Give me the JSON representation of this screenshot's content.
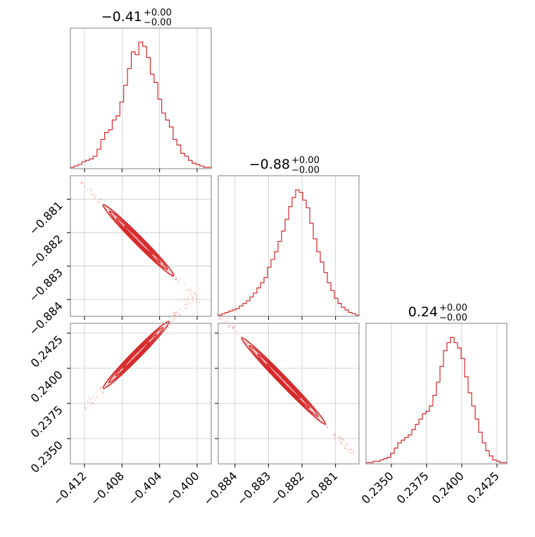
{
  "colors": {
    "accent": "#d62728",
    "grid": "#c8c8c8",
    "frame": "#808080"
  },
  "chart_data": {
    "type": "corner",
    "parameters": [
      {
        "title_value": "−0.41",
        "title_plus": "+0.00",
        "title_minus": "−0.00",
        "range": [
          -0.4135,
          -0.3985
        ],
        "ticks": [
          -0.412,
          -0.408,
          -0.404,
          -0.4
        ],
        "tick_labels": [
          "−0.412",
          "−0.408",
          "−0.404",
          "−0.400"
        ]
      },
      {
        "title_value": "−0.88",
        "title_plus": "+0.00",
        "title_minus": "−0.00",
        "range": [
          -0.8845,
          -0.8803
        ],
        "ticks": [
          -0.884,
          -0.883,
          -0.882,
          -0.881
        ],
        "tick_labels": [
          "−0.884",
          "−0.883",
          "−0.882",
          "−0.881"
        ]
      },
      {
        "title_value": "0.24",
        "title_plus": "+0.00",
        "title_minus": "−0.00",
        "range": [
          0.2332,
          0.2432
        ],
        "ticks": [
          0.235,
          0.2375,
          0.24,
          0.2425
        ],
        "tick_labels": [
          "0.2350",
          "0.2375",
          "0.2400",
          "0.2425"
        ]
      }
    ],
    "histograms": [
      {
        "param": 0,
        "counts": [
          1,
          2,
          3,
          5,
          6,
          7,
          9,
          14,
          21,
          26,
          28,
          35,
          38,
          48,
          60,
          72,
          84,
          82,
          91,
          88,
          80,
          68,
          62,
          50,
          40,
          35,
          30,
          21,
          17,
          11,
          9,
          6,
          4,
          3,
          2,
          1,
          1
        ]
      },
      {
        "param": 1,
        "counts": [
          1,
          2,
          3,
          4,
          5,
          6,
          8,
          10,
          12,
          15,
          18,
          22,
          26,
          30,
          38,
          44,
          50,
          58,
          66,
          75,
          85,
          92,
          98,
          96,
          90,
          84,
          72,
          60,
          50,
          42,
          34,
          26,
          20,
          14,
          10,
          7,
          5,
          3,
          2,
          1
        ]
      },
      {
        "param": 2,
        "counts": [
          1,
          1,
          2,
          2,
          3,
          4,
          5,
          8,
          12,
          16,
          18,
          20,
          22,
          26,
          30,
          34,
          38,
          40,
          44,
          52,
          62,
          74,
          86,
          92,
          96,
          92,
          88,
          80,
          66,
          54,
          44,
          34,
          24,
          16,
          10,
          6,
          3,
          2,
          1,
          1
        ]
      }
    ],
    "scatter_panels": [
      {
        "x_param": 0,
        "y_param": 1,
        "slope": -0.283,
        "intercept": -0.9972,
        "x_extent": [
          -0.4125,
          -0.3997
        ],
        "core_extent": [
          -0.41,
          -0.4025
        ],
        "spread": 9e-05
      },
      {
        "x_param": 0,
        "y_param": 2,
        "slope": 0.6786,
        "intercept": 0.5168,
        "x_extent": [
          -0.412,
          -0.4
        ],
        "core_extent": [
          -0.41,
          -0.403
        ],
        "spread": 0.00035
      },
      {
        "x_param": 1,
        "y_param": 2,
        "slope": -2.4615,
        "intercept": -1.9333,
        "x_extent": [
          -0.8845,
          -0.8804
        ],
        "core_extent": [
          -0.8838,
          -0.8813
        ],
        "spread": 0.00028
      }
    ],
    "grid": true,
    "color": "#d62728"
  }
}
